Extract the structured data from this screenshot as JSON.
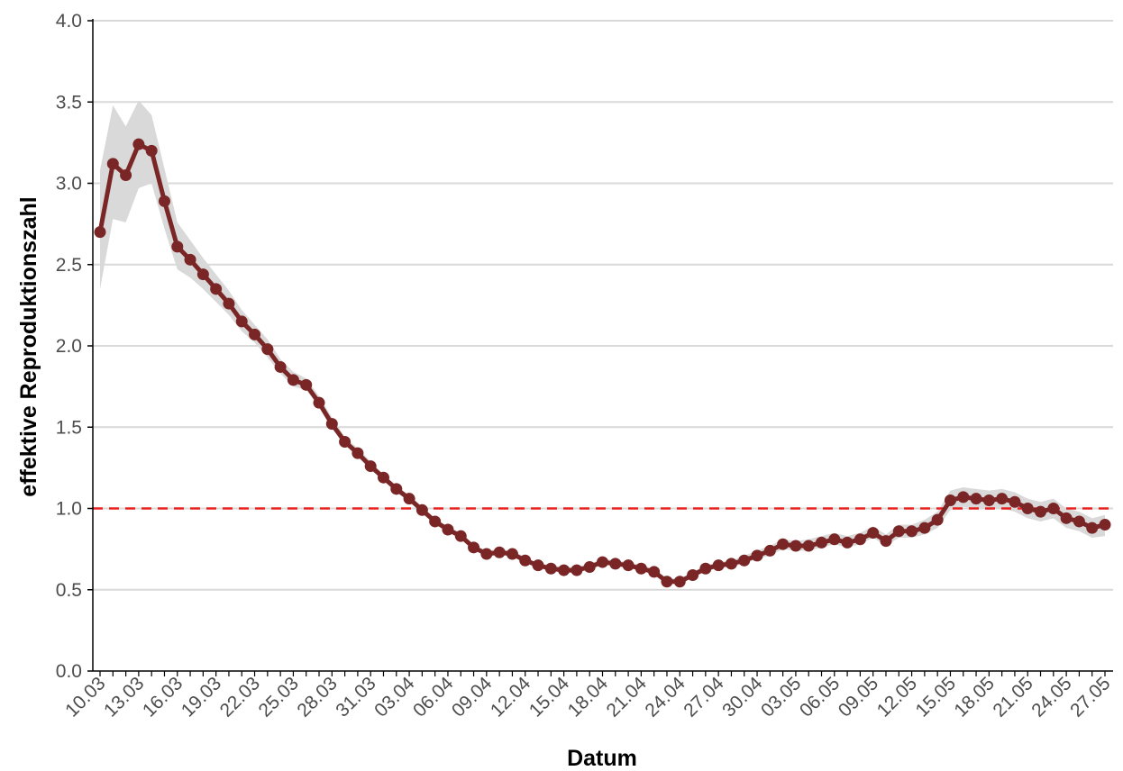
{
  "chart_data": {
    "type": "line",
    "title": "",
    "xlabel": "Datum",
    "ylabel": "effektive Reproduktionszahl",
    "ylim": [
      0,
      4
    ],
    "yticks": [
      "0.0",
      "0.5",
      "1.0",
      "1.5",
      "2.0",
      "2.5",
      "3.0",
      "3.5",
      "4.0"
    ],
    "reference_line": {
      "y": 1.0,
      "style": "dashed",
      "color": "#e8201f"
    },
    "x_ticks": [
      "10.03",
      "13.03",
      "16.03",
      "19.03",
      "22.03",
      "25.03",
      "28.03",
      "31.03",
      "03.04",
      "06.04",
      "09.04",
      "12.04",
      "15.04",
      "18.04",
      "21.04",
      "24.04",
      "27.04",
      "30.04",
      "03.05",
      "06.05",
      "09.05",
      "12.05",
      "15.05",
      "18.05",
      "21.05",
      "24.05",
      "27.05"
    ],
    "grid": "horizontal",
    "legend": "none",
    "colors": {
      "line": "#7b2626",
      "band": "#d9d9d9",
      "grid": "#d9d9d9",
      "axis": "#000000"
    },
    "series": [
      {
        "x": [
          "10.03",
          "11.03",
          "12.03",
          "13.03",
          "14.03",
          "15.03",
          "16.03",
          "17.03",
          "18.03",
          "19.03",
          "20.03",
          "21.03",
          "22.03",
          "23.03",
          "24.03",
          "25.03",
          "26.03",
          "27.03",
          "28.03",
          "29.03",
          "30.03",
          "31.03",
          "01.04",
          "02.04",
          "03.04",
          "04.04",
          "05.04",
          "06.04",
          "07.04",
          "08.04",
          "09.04",
          "10.04",
          "11.04",
          "12.04",
          "13.04",
          "14.04",
          "15.04",
          "16.04",
          "17.04",
          "18.04",
          "19.04",
          "20.04",
          "21.04",
          "22.04",
          "23.04",
          "24.04",
          "25.04",
          "26.04",
          "27.04",
          "28.04",
          "29.04",
          "30.04",
          "01.05",
          "02.05",
          "03.05",
          "04.05",
          "05.05",
          "06.05",
          "07.05",
          "08.05",
          "09.05",
          "10.05",
          "11.05",
          "12.05",
          "13.05",
          "14.05",
          "15.05",
          "16.05",
          "17.05",
          "18.05",
          "19.05",
          "20.05",
          "21.05",
          "22.05",
          "23.05",
          "24.05",
          "25.05",
          "26.05",
          "27.05"
        ],
        "y": [
          2.7,
          3.12,
          3.05,
          3.24,
          3.2,
          2.89,
          2.61,
          2.53,
          2.44,
          2.35,
          2.26,
          2.15,
          2.07,
          1.98,
          1.87,
          1.79,
          1.76,
          1.65,
          1.52,
          1.41,
          1.34,
          1.26,
          1.19,
          1.12,
          1.06,
          0.99,
          0.92,
          0.87,
          0.83,
          0.76,
          0.72,
          0.73,
          0.72,
          0.68,
          0.65,
          0.63,
          0.62,
          0.62,
          0.64,
          0.67,
          0.66,
          0.65,
          0.63,
          0.61,
          0.55,
          0.55,
          0.59,
          0.63,
          0.65,
          0.66,
          0.68,
          0.71,
          0.74,
          0.78,
          0.77,
          0.77,
          0.79,
          0.81,
          0.79,
          0.81,
          0.85,
          0.8,
          0.86,
          0.86,
          0.88,
          0.93,
          1.05,
          1.07,
          1.06,
          1.05,
          1.06,
          1.04,
          1.0,
          0.98,
          1.0,
          0.94,
          0.92,
          0.88,
          0.9
        ],
        "lower": [
          2.35,
          2.78,
          2.76,
          2.97,
          3.0,
          2.72,
          2.47,
          2.42,
          2.35,
          2.27,
          2.19,
          2.09,
          2.02,
          1.93,
          1.83,
          1.75,
          1.73,
          1.62,
          1.49,
          1.39,
          1.32,
          1.24,
          1.17,
          1.1,
          1.04,
          0.97,
          0.9,
          0.86,
          0.81,
          0.75,
          0.71,
          0.71,
          0.71,
          0.67,
          0.64,
          0.62,
          0.61,
          0.61,
          0.63,
          0.66,
          0.65,
          0.64,
          0.62,
          0.6,
          0.54,
          0.54,
          0.58,
          0.62,
          0.63,
          0.64,
          0.66,
          0.69,
          0.71,
          0.75,
          0.74,
          0.74,
          0.76,
          0.78,
          0.76,
          0.78,
          0.82,
          0.77,
          0.82,
          0.82,
          0.84,
          0.88,
          0.99,
          1.01,
          1.0,
          0.99,
          1.0,
          0.98,
          0.94,
          0.92,
          0.94,
          0.88,
          0.86,
          0.82,
          0.83
        ],
        "upper": [
          3.08,
          3.48,
          3.35,
          3.51,
          3.42,
          3.09,
          2.76,
          2.65,
          2.54,
          2.44,
          2.34,
          2.22,
          2.13,
          2.04,
          1.92,
          1.84,
          1.8,
          1.69,
          1.56,
          1.44,
          1.37,
          1.29,
          1.21,
          1.14,
          1.08,
          1.01,
          0.94,
          0.89,
          0.85,
          0.78,
          0.74,
          0.75,
          0.74,
          0.7,
          0.66,
          0.65,
          0.64,
          0.64,
          0.66,
          0.69,
          0.68,
          0.67,
          0.65,
          0.63,
          0.57,
          0.57,
          0.61,
          0.65,
          0.67,
          0.68,
          0.71,
          0.74,
          0.77,
          0.81,
          0.8,
          0.81,
          0.83,
          0.85,
          0.83,
          0.85,
          0.89,
          0.84,
          0.9,
          0.9,
          0.93,
          0.98,
          1.11,
          1.13,
          1.12,
          1.11,
          1.12,
          1.1,
          1.06,
          1.04,
          1.06,
          1.0,
          0.98,
          0.94,
          0.96
        ]
      }
    ]
  }
}
